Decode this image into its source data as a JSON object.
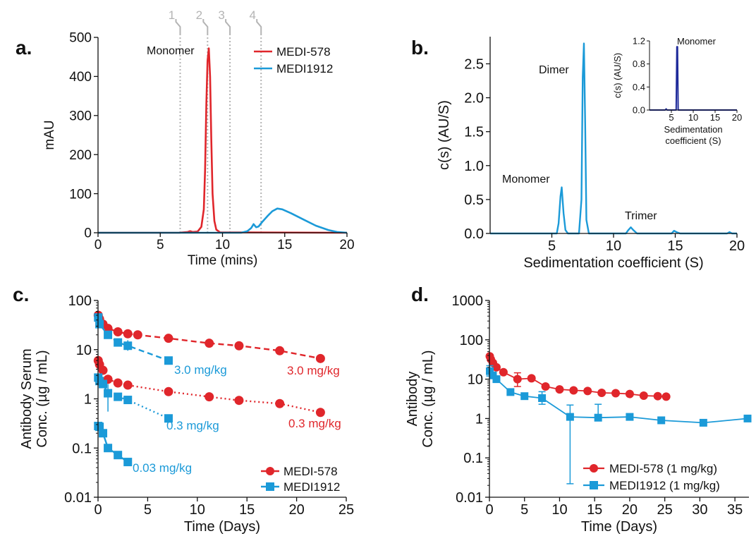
{
  "panel_labels": {
    "a": "a.",
    "b": "b.",
    "c": "c.",
    "d": "d."
  },
  "colors": {
    "red": "#e0262b",
    "blue": "#1b9ad8",
    "gray": "#b4b4b4",
    "navy": "#1e2a9a"
  },
  "chart_data": [
    {
      "id": "a",
      "type": "line",
      "xlabel": "Time (mins)",
      "ylabel": "mAU",
      "xlim": [
        0,
        20
      ],
      "ylim": [
        0,
        500
      ],
      "xticks": [
        0,
        5,
        10,
        15,
        20
      ],
      "yticks": [
        0,
        100,
        200,
        300,
        400,
        500
      ],
      "annotation": "Monomer",
      "fraction_markers": [
        {
          "label": "1",
          "x": 6.6
        },
        {
          "label": "2",
          "x": 8.8
        },
        {
          "label": "3",
          "x": 10.6
        },
        {
          "label": "4",
          "x": 13.1
        }
      ],
      "series": [
        {
          "name": "MEDI-578",
          "color": "#e0262b",
          "x": [
            0,
            6.5,
            7.2,
            7.4,
            7.6,
            8.0,
            8.3,
            8.5,
            8.6,
            8.7,
            8.8,
            8.9,
            9.0,
            9.1,
            9.2,
            9.35,
            9.5,
            9.8,
            20
          ],
          "y": [
            0,
            0,
            2,
            4,
            2,
            3,
            15,
            60,
            160,
            330,
            440,
            472,
            400,
            240,
            100,
            30,
            8,
            1,
            0
          ]
        },
        {
          "name": "MEDI1912",
          "color": "#1b9ad8",
          "x": [
            0,
            11.5,
            12.0,
            12.3,
            12.5,
            12.7,
            12.9,
            13.2,
            13.6,
            14.0,
            14.4,
            14.8,
            15.5,
            16.5,
            17.5,
            18.5,
            19.2,
            20
          ],
          "y": [
            0,
            0,
            4,
            12,
            22,
            14,
            16,
            28,
            42,
            55,
            62,
            60,
            50,
            34,
            18,
            7,
            2,
            0
          ]
        }
      ]
    },
    {
      "id": "b",
      "type": "line",
      "xlabel": "Sedimentation coefficient (S)",
      "ylabel": "c(s) (AU/S)",
      "xlim": [
        0,
        20
      ],
      "ylim": [
        0,
        2.9
      ],
      "xticks": [
        5,
        10,
        15,
        20
      ],
      "yticks": [
        0.0,
        0.5,
        1.0,
        1.5,
        2.0,
        2.5
      ],
      "annotations": [
        {
          "text": "Dimer",
          "x": 7.6,
          "y": 2.8
        },
        {
          "text": "Monomer",
          "x": 5.8,
          "y": 0.68
        },
        {
          "text": "Trimer",
          "x": 11.4,
          "y": 0.08
        }
      ],
      "series": [
        {
          "name": "",
          "color": "#1b9ad8",
          "x": [
            0,
            5.4,
            5.55,
            5.7,
            5.8,
            5.95,
            6.1,
            6.3,
            7.2,
            7.4,
            7.5,
            7.6,
            7.7,
            7.8,
            8.0,
            11.0,
            11.2,
            11.4,
            11.6,
            11.9,
            14.7,
            14.9,
            15.1,
            15.4,
            19.2,
            19.4,
            19.6,
            20
          ],
          "y": [
            0,
            0,
            0.15,
            0.55,
            0.68,
            0.3,
            0.05,
            0,
            0,
            0.5,
            2.3,
            2.8,
            1.6,
            0.2,
            0,
            0,
            0.05,
            0.09,
            0.05,
            0,
            0,
            0.04,
            0.02,
            0,
            0,
            0.02,
            0,
            0
          ]
        }
      ],
      "inset": {
        "xlabel": "Sedimentation coefficient (S)",
        "ylabel": "c(s) (AU/S)",
        "xlim": [
          0,
          20
        ],
        "ylim": [
          0,
          1.2
        ],
        "xticks": [
          5,
          10,
          15,
          20
        ],
        "yticks": [
          0.0,
          0.4,
          0.8,
          1.2
        ],
        "annotation": "Monomer",
        "series": [
          {
            "name": "",
            "color": "#1e2a9a",
            "x": [
              0,
              3.6,
              3.8,
              4.0,
              6.1,
              6.25,
              6.4,
              6.55,
              20
            ],
            "y": [
              0,
              0,
              0.02,
              0,
              0,
              1.1,
              1.1,
              0,
              0
            ]
          }
        ]
      }
    },
    {
      "id": "c",
      "type": "scatter",
      "xlabel": "Time (Days)",
      "ylabel": "Antibody Serum Conc. (µg / mL)",
      "ylabel_lines": [
        "Antibody Serum",
        "Conc. (µg / mL)"
      ],
      "log_y": true,
      "xlim": [
        0,
        25
      ],
      "ylim": [
        0.01,
        100
      ],
      "xticks": [
        0,
        5,
        10,
        15,
        20,
        25
      ],
      "yticks": [
        0.01,
        0.1,
        1,
        10,
        100
      ],
      "ytick_labels": [
        "0.01",
        "0.1",
        "1",
        "10",
        "100"
      ],
      "series": [
        {
          "name": "MEDI-578",
          "label": "3.0 mg/kg",
          "color": "#e0262b",
          "marker": "circle",
          "dash": "8,5",
          "x": [
            0.02,
            0.15,
            0.5,
            1,
            2,
            3,
            4,
            7.1,
            11.2,
            14.2,
            18.3,
            22.4
          ],
          "y": [
            50,
            42,
            33,
            27,
            23,
            21,
            20,
            17,
            13.5,
            12,
            9.5,
            6.6
          ]
        },
        {
          "name": "MEDI-578",
          "label": "0.3 mg/kg",
          "color": "#e0262b",
          "marker": "circle",
          "dash": "2,4",
          "x": [
            0.02,
            0.15,
            0.5,
            1,
            2,
            3,
            7.1,
            11.2,
            14.2,
            18.3,
            22.4
          ],
          "y": [
            6,
            5,
            3.8,
            2.5,
            2.1,
            1.9,
            1.4,
            1.1,
            0.93,
            0.8,
            0.53
          ]
        },
        {
          "name": "MEDI1912",
          "label": "3.0 mg/kg",
          "color": "#1b9ad8",
          "marker": "square",
          "dash": "8,5",
          "x": [
            0.02,
            0.15,
            1,
            2,
            3,
            7.1
          ],
          "y": [
            45,
            33,
            20,
            14,
            12,
            6
          ]
        },
        {
          "name": "MEDI1912",
          "label": "0.3 mg/kg",
          "color": "#1b9ad8",
          "marker": "square",
          "dash": "2,4",
          "x": [
            0.02,
            0.15,
            0.5,
            1,
            2,
            3,
            7.1
          ],
          "y": [
            2.7,
            2.3,
            2.0,
            1.3,
            1.1,
            0.95,
            0.4
          ]
        },
        {
          "name": "MEDI1912",
          "label": "0.03 mg/kg",
          "color": "#1b9ad8",
          "marker": "square",
          "dash": "",
          "x": [
            0.02,
            0.15,
            0.5,
            1,
            2,
            3
          ],
          "y": [
            0.28,
            0.27,
            0.2,
            0.1,
            0.072,
            0.052
          ]
        }
      ],
      "dose_labels": [
        {
          "text": "3.0 mg/kg",
          "color": "#e0262b",
          "x": 22.4,
          "y": 4.4
        },
        {
          "text": "0.3 mg/kg",
          "color": "#e0262b",
          "x": 22.4,
          "y": 0.36
        },
        {
          "text": "3.0 mg/kg",
          "color": "#1b9ad8",
          "x": 7.1,
          "y": 4.4
        },
        {
          "text": "0.3 mg/kg",
          "color": "#1b9ad8",
          "x": 7.1,
          "y": 0.28
        },
        {
          "text": "0.03 mg/kg",
          "color": "#1b9ad8",
          "x": 3.4,
          "y": 0.036
        }
      ],
      "legend": [
        {
          "name": "MEDI-578",
          "color": "#e0262b",
          "marker": "circle"
        },
        {
          "name": "MEDI1912",
          "color": "#1b9ad8",
          "marker": "square"
        }
      ],
      "legend_position": "bottom-right"
    },
    {
      "id": "d",
      "type": "line",
      "xlabel": "Time (Days)",
      "ylabel": "Antibody Conc. (µg / mL)",
      "ylabel_lines": [
        "Antibody",
        "Conc. (µg / mL)"
      ],
      "log_y": true,
      "xlim": [
        0,
        37
      ],
      "ylim": [
        0.01,
        1000
      ],
      "xticks": [
        0,
        5,
        10,
        15,
        20,
        25,
        30,
        35
      ],
      "yticks": [
        0.01,
        0.1,
        1,
        10,
        100,
        1000
      ],
      "ytick_labels": [
        "0.01",
        "0.1",
        "1",
        "10",
        "100",
        "1000"
      ],
      "series": [
        {
          "name": "MEDI-578 (1 mg/kg)",
          "color": "#e0262b",
          "marker": "circle",
          "x": [
            0.05,
            0.2,
            0.5,
            1,
            2,
            4,
            6,
            8,
            10,
            12,
            14,
            16,
            18,
            20,
            22,
            24,
            25.2
          ],
          "y": [
            38,
            32,
            26,
            20,
            15,
            10,
            10.5,
            6.5,
            5.5,
            5.2,
            5.0,
            4.5,
            4.4,
            4.2,
            3.8,
            3.7,
            3.6
          ],
          "error_bars": [
            {
              "x": 4,
              "low": 6.5,
              "high": 14.5
            }
          ]
        },
        {
          "name": "MEDI1912 (1 mg/kg)",
          "color": "#1b9ad8",
          "marker": "square",
          "x": [
            0.05,
            0.5,
            1,
            3,
            5,
            7.5,
            11.5,
            15.5,
            20,
            24.5,
            30.5,
            36.8
          ],
          "y": [
            16,
            12.5,
            10,
            4.7,
            3.7,
            3.3,
            1.1,
            1.05,
            1.1,
            0.9,
            0.78,
            1.0
          ],
          "error_bars": [
            {
              "x": 0.05,
              "low": 12,
              "high": 22
            },
            {
              "x": 7.5,
              "low": 2.3,
              "high": 4.8
            },
            {
              "x": 11.5,
              "low": 0.022,
              "high": 2.2
            },
            {
              "x": 15.5,
              "low": 0.9,
              "high": 2.3
            }
          ]
        }
      ],
      "legend_position": "bottom-right"
    }
  ]
}
